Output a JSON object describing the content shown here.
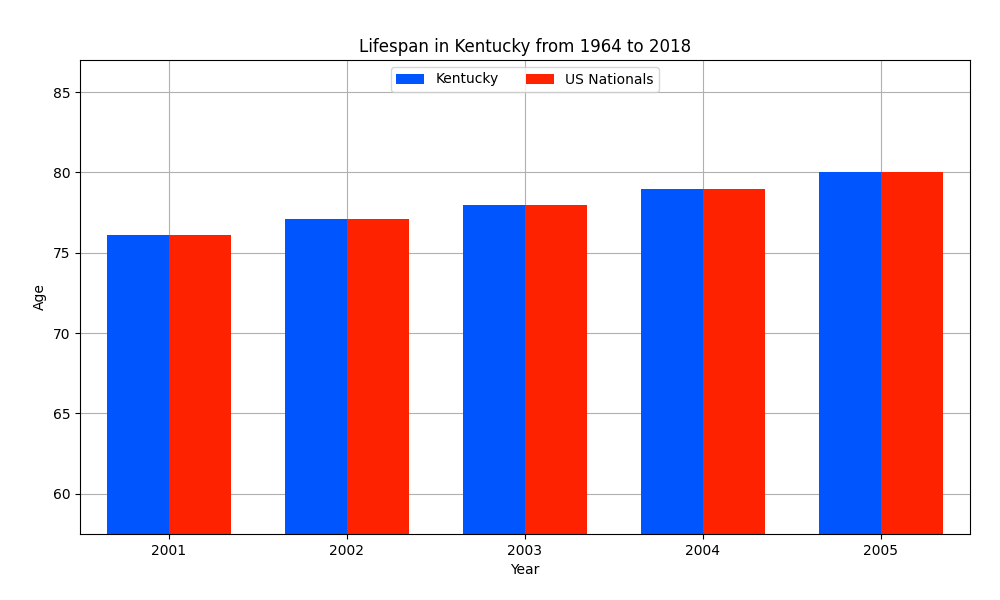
{
  "chart_data": {
    "type": "bar",
    "title": "Lifespan in Kentucky from 1964 to 2018",
    "x_label": "Year",
    "y_label": "Age",
    "categories": [
      "2001",
      "2002",
      "2003",
      "2004",
      "2005"
    ],
    "series": [
      {
        "name": "Kentucky",
        "color": "#0055ff",
        "values": [
          76.1,
          77.1,
          78.0,
          79.0,
          80.0
        ]
      },
      {
        "name": "US Nationals",
        "color": "#ff2200",
        "values": [
          76.1,
          77.1,
          78.0,
          79.0,
          80.0
        ]
      }
    ],
    "ylim": [
      57.5,
      87
    ],
    "yticks": [
      60,
      65,
      70,
      75,
      80,
      85
    ],
    "grid": true,
    "legend": "upper center"
  }
}
